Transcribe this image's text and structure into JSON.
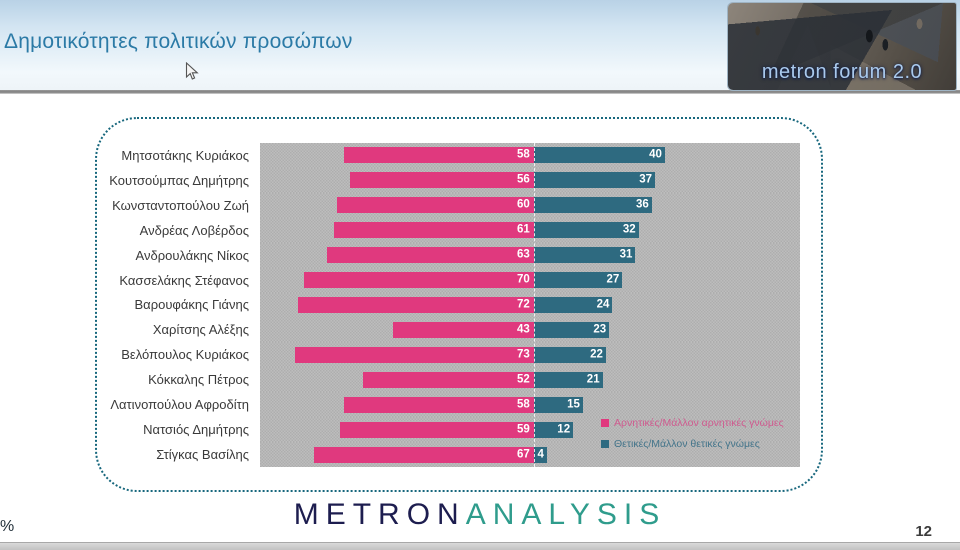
{
  "header": {
    "title": "Δημοτικότητες πολιτικών προσώπων",
    "logo_text": "metron forum 2.0"
  },
  "chart_data": {
    "type": "bar",
    "orientation": "horizontal-diverging",
    "unit": "%",
    "plot_background": "#b7b7b7",
    "legend_position": "inside-bottom-right",
    "categories": [
      "Μητσοτάκης Κυριάκος",
      "Κουτσούμπας Δημήτρης",
      "Κωνσταντοπούλου Ζωή",
      "Ανδρέας Λοβέρδος",
      "Ανδρουλάκης Νίκος",
      "Κασσελάκης Στέφανος",
      "Βαρουφάκης Γιάνης",
      "Χαρίτσης Αλέξης",
      "Βελόπουλος Κυριάκος",
      "Κόκκαλης Πέτρος",
      "Λατινοπούλου Αφροδίτη",
      "Νατσιός Δημήτρης",
      "Στίγκας Βασίλης"
    ],
    "series": [
      {
        "name": "Αρνητικές/Μάλλον αρνητικές γνώμες",
        "color": "#e0397e",
        "label_color": "#cf5b8f",
        "direction": "left",
        "values": [
          58,
          56,
          60,
          61,
          63,
          70,
          72,
          43,
          73,
          52,
          58,
          59,
          67
        ]
      },
      {
        "name": "Θετικές/Μάλλον θετικές γνώμες",
        "color": "#2e6a80",
        "label_color": "#44758b",
        "direction": "right",
        "values": [
          40,
          37,
          36,
          32,
          31,
          27,
          24,
          23,
          22,
          21,
          15,
          12,
          4
        ]
      }
    ]
  },
  "footer": {
    "brand_part1": "METRON",
    "brand_part2": "ANALYSIS",
    "page_number": "12",
    "axis_hint": "%"
  },
  "colors": {
    "title": "#2b7aa6",
    "panel_border": "#17677d",
    "negative": "#e0397e",
    "positive": "#2e6a80"
  }
}
